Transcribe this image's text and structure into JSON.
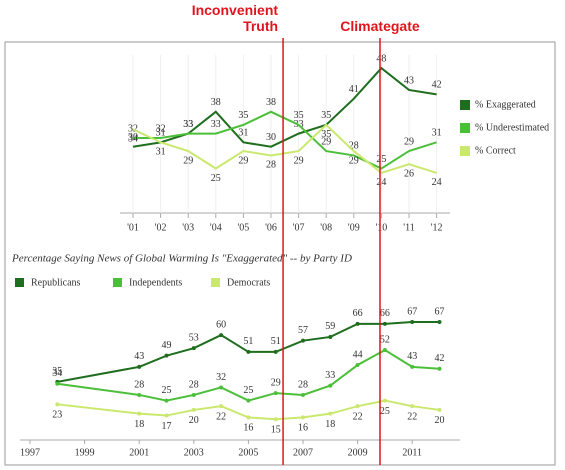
{
  "chart_data": [
    {
      "type": "line",
      "categories": [
        "'01",
        "'02",
        "'03",
        "'04",
        "'05",
        "'06",
        "'07",
        "'08",
        "'09",
        "'10",
        "'11",
        "'12"
      ],
      "series": [
        {
          "name": "% Exaggerated",
          "color": "#1f6e1f",
          "values": [
            30,
            31,
            33,
            38,
            31,
            30,
            33,
            35,
            41,
            48,
            43,
            42
          ]
        },
        {
          "name": "% Underestimated",
          "color": "#4cbf3a",
          "values": [
            32,
            32,
            33,
            33,
            35,
            38,
            35,
            29,
            28,
            25,
            29,
            31
          ]
        },
        {
          "name": "% Correct",
          "color": "#cbe86e",
          "values": [
            34,
            31,
            29,
            25,
            29,
            28,
            29,
            35,
            29,
            24,
            26,
            24
          ]
        }
      ],
      "ylim": [
        15.5,
        53.3
      ],
      "grid": true,
      "legend": "right"
    },
    {
      "type": "line",
      "title": "Percentage Saying News of Global Warming Is \"Exaggerated\" -- by Party ID",
      "x": [
        1998,
        2001,
        2002,
        2003,
        2004,
        2005,
        2006,
        2007,
        2008,
        2009,
        2010,
        2011,
        2012
      ],
      "series": [
        {
          "name": "Republicans",
          "color": "#1f6e1f",
          "values": [
            35,
            43,
            49,
            53,
            60,
            51,
            51,
            57,
            59,
            66,
            66,
            67,
            67
          ]
        },
        {
          "name": "Independents",
          "color": "#4cbf3a",
          "values": [
            34,
            28,
            25,
            28,
            32,
            25,
            29,
            28,
            33,
            44,
            52,
            43,
            42
          ]
        },
        {
          "name": "Democrats",
          "color": "#cbe86e",
          "values": [
            23,
            18,
            17,
            20,
            22,
            16,
            15,
            16,
            18,
            22,
            25,
            22,
            20
          ]
        }
      ],
      "xlim": [
        1997,
        2013
      ],
      "xticks": [
        1997,
        1999,
        2001,
        2003,
        2005,
        2007,
        2009,
        2011
      ],
      "ylim": [
        5,
        75
      ],
      "legend": "top",
      "annotations": [
        {
          "text": "Inconvenient Truth",
          "x": 2006.27,
          "color": "#e0141e"
        },
        {
          "text": "Climategate",
          "x": 2009.82,
          "color": "#e0141e"
        }
      ]
    }
  ]
}
